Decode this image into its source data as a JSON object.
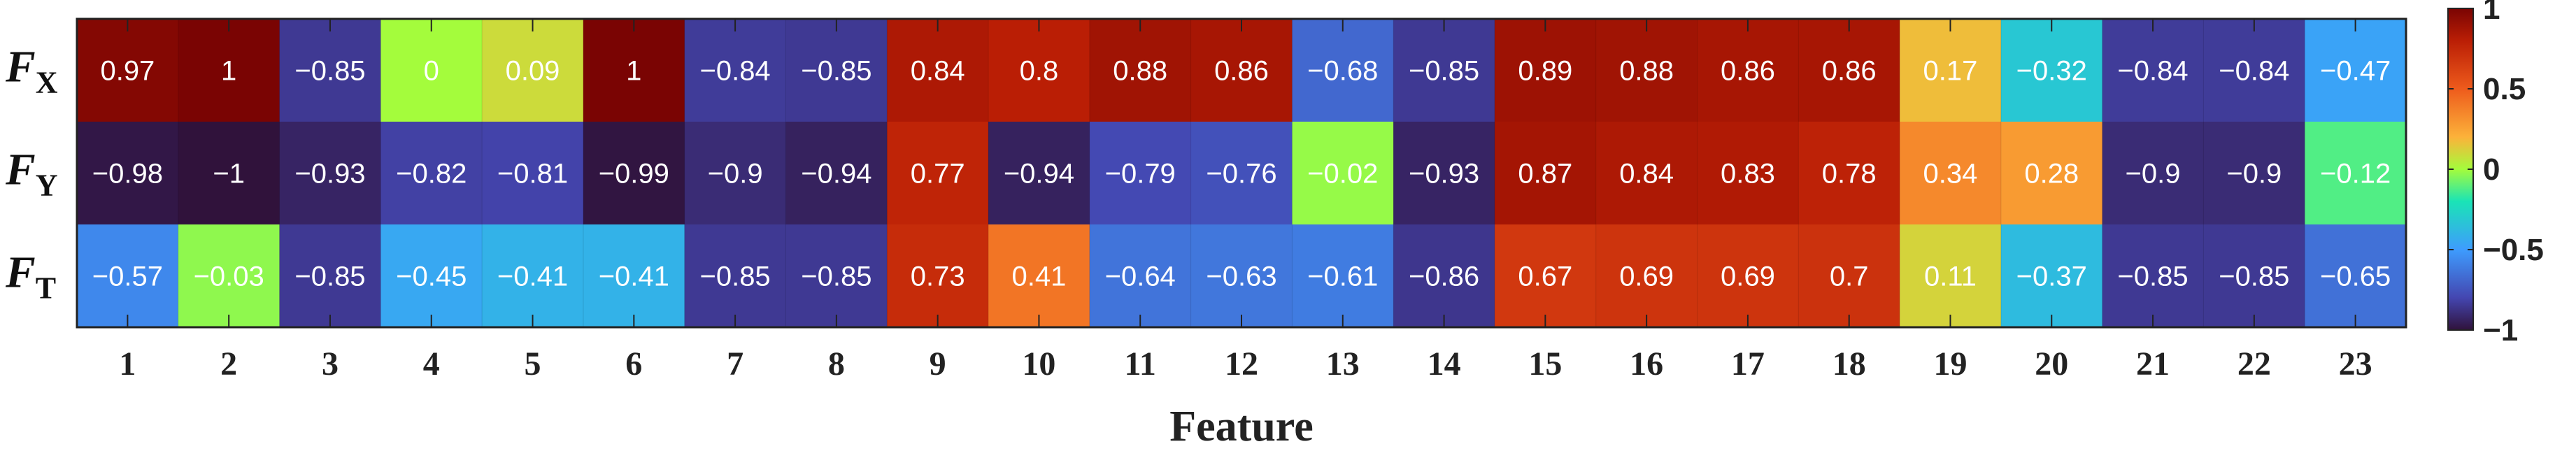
{
  "chart_data": {
    "type": "heatmap",
    "xlabel": "Feature",
    "x": [
      "1",
      "2",
      "3",
      "4",
      "5",
      "6",
      "7",
      "8",
      "9",
      "10",
      "11",
      "12",
      "13",
      "14",
      "15",
      "16",
      "17",
      "18",
      "19",
      "20",
      "21",
      "22",
      "23"
    ],
    "rows": [
      {
        "label": "F",
        "sub": "X",
        "values": [
          0.97,
          1,
          -0.85,
          0,
          0.09,
          1,
          -0.84,
          -0.85,
          0.84,
          0.8,
          0.88,
          0.86,
          -0.68,
          -0.85,
          0.89,
          0.88,
          0.86,
          0.86,
          0.17,
          -0.32,
          -0.84,
          -0.84,
          -0.47
        ]
      },
      {
        "label": "F",
        "sub": "Y",
        "values": [
          -0.98,
          -1,
          -0.93,
          -0.82,
          -0.81,
          -0.99,
          -0.9,
          -0.94,
          0.77,
          -0.94,
          -0.79,
          -0.76,
          -0.02,
          -0.93,
          0.87,
          0.84,
          0.83,
          0.78,
          0.34,
          0.28,
          -0.9,
          -0.9,
          -0.12
        ]
      },
      {
        "label": "F",
        "sub": "T",
        "values": [
          -0.57,
          -0.03,
          -0.85,
          -0.45,
          -0.41,
          -0.41,
          -0.85,
          -0.85,
          0.73,
          0.41,
          -0.64,
          -0.63,
          -0.61,
          -0.86,
          0.67,
          0.69,
          0.69,
          0.7,
          0.11,
          -0.37,
          -0.85,
          -0.85,
          -0.65
        ]
      }
    ],
    "cell_labels": [
      [
        "0.97",
        "1",
        "−0.85",
        "0",
        "0.09",
        "1",
        "−0.84",
        "−0.85",
        "0.84",
        "0.8",
        "0.88",
        "0.86",
        "−0.68",
        "−0.85",
        "0.89",
        "0.88",
        "0.86",
        "0.86",
        "0.17",
        "−0.32",
        "−0.84",
        "−0.84",
        "−0.47"
      ],
      [
        "−0.98",
        "−1",
        "−0.93",
        "−0.82",
        "−0.81",
        "−0.99",
        "−0.9",
        "−0.94",
        "0.77",
        "−0.94",
        "−0.79",
        "−0.76",
        "−0.02",
        "−0.93",
        "0.87",
        "0.84",
        "0.83",
        "0.78",
        "0.34",
        "0.28",
        "−0.9",
        "−0.9",
        "−0.12"
      ],
      [
        "−0.57",
        "−0.03",
        "−0.85",
        "−0.45",
        "−0.41",
        "−0.41",
        "−0.85",
        "−0.85",
        "0.73",
        "0.41",
        "−0.64",
        "−0.63",
        "−0.61",
        "−0.86",
        "0.67",
        "0.69",
        "0.69",
        "0.7",
        "0.11",
        "−0.37",
        "−0.85",
        "−0.85",
        "−0.65"
      ]
    ],
    "colorbar": {
      "range": [
        -1,
        1
      ],
      "ticks": [
        1,
        0.5,
        0,
        -0.5,
        -1
      ],
      "tick_labels": [
        "1",
        "0.5",
        "0",
        "−0.5",
        "−1"
      ]
    },
    "colormap": "turbo"
  }
}
